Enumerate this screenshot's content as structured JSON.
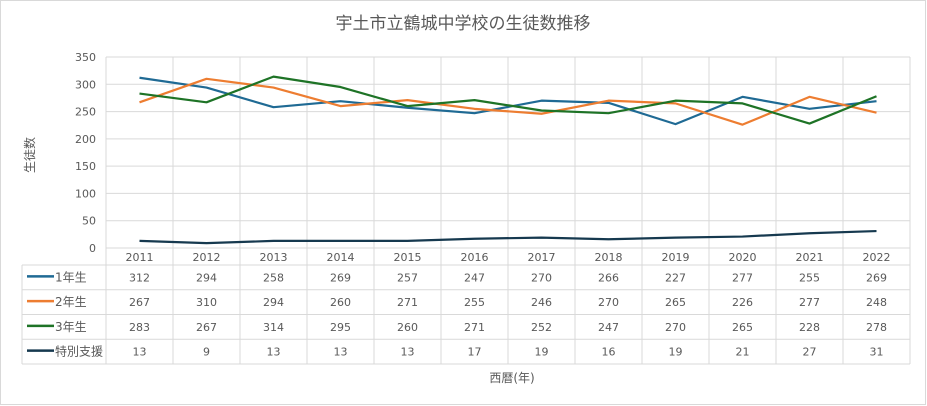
{
  "chart_data": {
    "type": "line",
    "title": "宇土市立鶴城中学校の生徒数推移",
    "xlabel": "西暦(年)",
    "ylabel": "生徒数",
    "ylim": [
      0,
      350
    ],
    "yticks": [
      0,
      50,
      100,
      150,
      200,
      250,
      300,
      350
    ],
    "grid": true,
    "legend": "data-table",
    "categories": [
      "2011",
      "2012",
      "2013",
      "2014",
      "2015",
      "2016",
      "2017",
      "2018",
      "2019",
      "2020",
      "2021",
      "2022"
    ],
    "series": [
      {
        "name": "1年生",
        "color": "#1f6a94",
        "values": [
          312,
          294,
          258,
          269,
          257,
          247,
          270,
          266,
          227,
          277,
          255,
          269
        ]
      },
      {
        "name": "2年生",
        "color": "#ed7d31",
        "values": [
          267,
          310,
          294,
          260,
          271,
          255,
          246,
          270,
          265,
          226,
          277,
          248
        ]
      },
      {
        "name": "3年生",
        "color": "#1e7326",
        "values": [
          283,
          267,
          314,
          295,
          260,
          271,
          252,
          247,
          270,
          265,
          228,
          278
        ]
      },
      {
        "name": "特別支援",
        "color": "#16394f",
        "values": [
          13,
          9,
          13,
          13,
          13,
          17,
          19,
          16,
          19,
          21,
          27,
          31
        ]
      }
    ]
  }
}
